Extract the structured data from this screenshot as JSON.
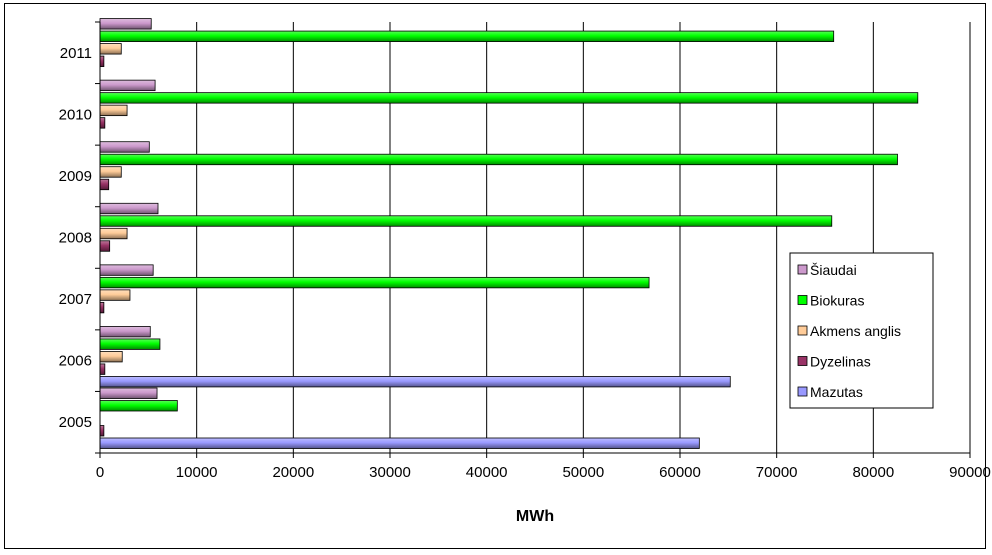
{
  "chart_data": {
    "type": "bar",
    "orientation": "horizontal",
    "categories": [
      "2005",
      "2006",
      "2007",
      "2008",
      "2009",
      "2010",
      "2011"
    ],
    "series": [
      {
        "name": "Mazutas",
        "color": "#9999ff",
        "values": [
          62000,
          65200,
          null,
          null,
          null,
          null,
          null
        ]
      },
      {
        "name": "Dyzelinas",
        "color": "#993366",
        "values": [
          400,
          500,
          400,
          1000,
          900,
          500,
          400
        ]
      },
      {
        "name": "Akmens anglis",
        "color": "#ffcc99",
        "values": [
          null,
          2300,
          3100,
          2800,
          2200,
          2800,
          2200
        ]
      },
      {
        "name": "Biokuras",
        "color": "#00ff00",
        "values": [
          8000,
          6200,
          56800,
          75700,
          82500,
          84600,
          75900
        ]
      },
      {
        "name": "Šiaudai",
        "color": "#cc99cc",
        "values": [
          5900,
          5200,
          5500,
          6000,
          5100,
          5700,
          5300
        ]
      }
    ],
    "xlabel": "MWh",
    "ylabel": "",
    "xlim": [
      0,
      90000
    ],
    "x_ticks": [
      "0",
      "10000",
      "20000",
      "30000",
      "40000",
      "50000",
      "60000",
      "70000",
      "80000",
      "90000"
    ],
    "grid": "vertical",
    "legend_position": "right",
    "legend_order": [
      "Šiaudai",
      "Biokuras",
      "Akmens anglis",
      "Dyzelinas",
      "Mazutas"
    ]
  }
}
